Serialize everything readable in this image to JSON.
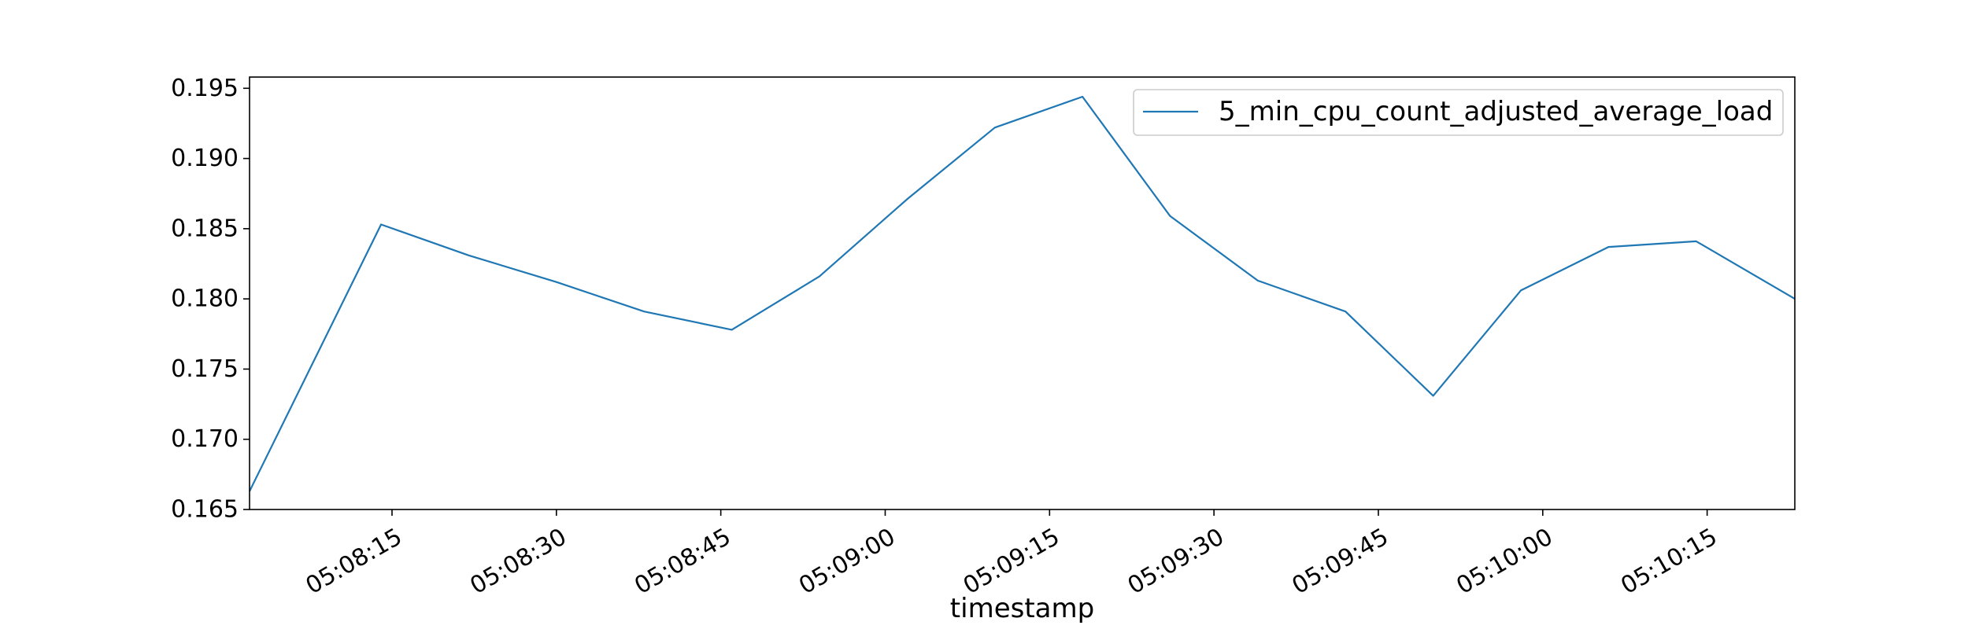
{
  "chart_data": {
    "type": "line",
    "title": "",
    "xlabel": "timestamp",
    "ylabel": "",
    "grid": false,
    "legend_position": "top-right",
    "x_start": "05:08:02",
    "x_end": "05:10:23",
    "xlim": [
      "05:08:02",
      "05:10:23"
    ],
    "ylim": [
      0.165,
      0.1958
    ],
    "x_ticks": [
      "05:08:15",
      "05:08:30",
      "05:08:45",
      "05:09:00",
      "05:09:15",
      "05:09:30",
      "05:09:45",
      "05:10:00",
      "05:10:15"
    ],
    "y_ticks": [
      0.165,
      0.17,
      0.175,
      0.18,
      0.185,
      0.19,
      0.195
    ],
    "y_tick_labels": [
      "0.165",
      "0.170",
      "0.175",
      "0.180",
      "0.185",
      "0.190",
      "0.195"
    ],
    "series": [
      {
        "name": "5_min_cpu_count_adjusted_average_load",
        "color": "#1f77b4",
        "x": [
          "05:08:02",
          "05:08:14",
          "05:08:22",
          "05:08:30",
          "05:08:38",
          "05:08:46",
          "05:08:54",
          "05:09:02",
          "05:09:10",
          "05:09:18",
          "05:09:26",
          "05:09:34",
          "05:09:42",
          "05:09:50",
          "05:09:58",
          "05:10:06",
          "05:10:14",
          "05:10:23"
        ],
        "values": [
          0.1663,
          0.1853,
          0.1831,
          0.1812,
          0.1791,
          0.1778,
          0.1816,
          0.1871,
          0.1922,
          0.1944,
          0.1859,
          0.1813,
          0.1791,
          0.1731,
          0.1806,
          0.1837,
          0.1841,
          0.18
        ]
      }
    ]
  }
}
